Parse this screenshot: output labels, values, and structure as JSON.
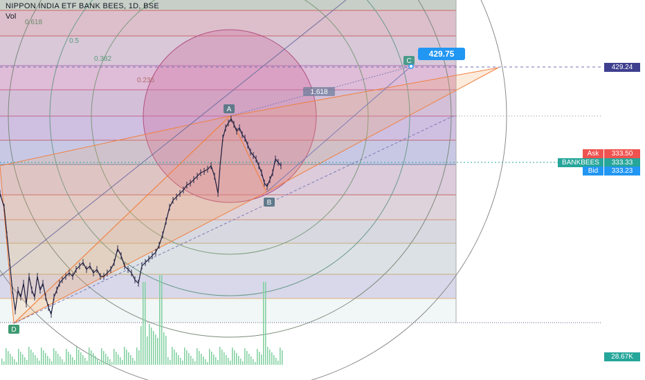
{
  "header": {
    "title": "NIPPON INDIA ETF BANK BEES, 1D, BSE",
    "volume_label": "Vol"
  },
  "colors": {
    "ask": "#ef5350",
    "last": "#26a69a",
    "bid": "#2196f3",
    "target": "#3f3f8f",
    "volume": "#26a69a"
  },
  "price_scale": {
    "target_price": "429.24",
    "ask_label": "Ask",
    "ask_price": "333.50",
    "symbol_label": "BANKBEES",
    "last_price": "333.33",
    "bid_label": "Bid",
    "bid_price": "333.23",
    "volume_value": "28.67K"
  },
  "pattern": {
    "points": [
      "D",
      "A",
      "B",
      "C"
    ],
    "ratio_label": "1.618",
    "callout_value": "429.75"
  },
  "fib_levels": [
    "0.618",
    "0.5",
    "0.382",
    "0.236"
  ]
}
